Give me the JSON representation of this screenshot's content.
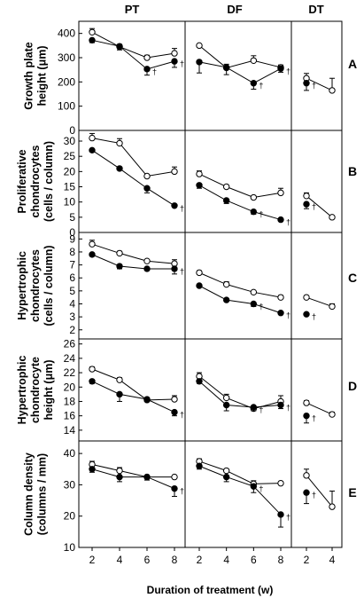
{
  "figure": {
    "columns": [
      "PT",
      "DF",
      "DT"
    ],
    "xlabel": "Duration of treatment (w)",
    "dagger": "†"
  },
  "chart_data": [
    {
      "type": "line",
      "panel": "A",
      "ylabel": [
        "Growth plate",
        "height (μm)"
      ],
      "ylim": [
        0,
        450
      ],
      "yticks": [
        0,
        100,
        200,
        300,
        400
      ],
      "groups": {
        "PT": {
          "x": [
            2,
            4,
            6,
            8
          ],
          "series": [
            {
              "marker": "open",
              "values": [
                405,
                345,
                300,
                318
              ],
              "err": [
                15,
                10,
                10,
                20
              ]
            },
            {
              "marker": "filled",
              "values": [
                372,
                347,
                253,
                285
              ],
              "err": [
                10,
                15,
                25,
                25
              ],
              "dagger": [
                false,
                false,
                true,
                true
              ]
            }
          ]
        },
        "DF": {
          "x": [
            2,
            4,
            6,
            8
          ],
          "series": [
            {
              "marker": "open",
              "values": [
                350,
                258,
                288,
                260
              ],
              "err": [
                5,
                15,
                20,
                10
              ]
            },
            {
              "marker": "filled",
              "values": [
                282,
                260,
                195,
                255
              ],
              "err": [
                45,
                30,
                25,
                15
              ],
              "dagger": [
                false,
                false,
                true,
                true
              ]
            }
          ]
        },
        "DT": {
          "x": [
            2,
            4
          ],
          "series": [
            {
              "marker": "open",
              "values": [
                215,
                165
              ],
              "err": [
                20,
                50
              ]
            },
            {
              "marker": "filled",
              "values": [
                195
              ],
              "err": [
                30
              ],
              "dagger": [
                true
              ]
            }
          ]
        }
      }
    },
    {
      "type": "line",
      "panel": "B",
      "ylabel": [
        "Proliferative",
        "chondrocytes",
        "(cells / column)"
      ],
      "ylim": [
        0,
        33.5
      ],
      "yticks": [
        0,
        5,
        10,
        15,
        20,
        25,
        30
      ],
      "groups": {
        "PT": {
          "x": [
            2,
            4,
            6,
            8
          ],
          "series": [
            {
              "marker": "open",
              "values": [
                31,
                29.3,
                18.5,
                20
              ],
              "err": [
                1.5,
                1.5,
                0.5,
                1.5
              ]
            },
            {
              "marker": "filled",
              "values": [
                27,
                21,
                14.5,
                8.8
              ],
              "err": [
                0.5,
                0.5,
                1.5,
                0.5
              ],
              "dagger": [
                false,
                false,
                false,
                true
              ]
            }
          ]
        },
        "DF": {
          "x": [
            2,
            4,
            6,
            8
          ],
          "series": [
            {
              "marker": "open",
              "values": [
                19.2,
                15,
                11.5,
                13
              ],
              "err": [
                1,
                0.5,
                0.5,
                1.5
              ]
            },
            {
              "marker": "filled",
              "values": [
                15.5,
                10.5,
                6.8,
                4.2
              ],
              "err": [
                1,
                1,
                0.8,
                0.5
              ],
              "dagger": [
                false,
                false,
                true,
                true
              ]
            }
          ]
        },
        "DT": {
          "x": [
            2,
            4
          ],
          "series": [
            {
              "marker": "open",
              "values": [
                12,
                5
              ],
              "err": [
                1,
                0.5
              ]
            },
            {
              "marker": "filled",
              "values": [
                9.3
              ],
              "err": [
                1.5
              ],
              "dagger": [
                true
              ]
            }
          ]
        }
      }
    },
    {
      "type": "line",
      "panel": "C",
      "ylabel": [
        "Hypertrophic",
        "chondrocytes",
        "(cells / column)"
      ],
      "ylim": [
        1.3,
        9.5
      ],
      "yticks": [
        2,
        3,
        4,
        5,
        6,
        7,
        8,
        9
      ],
      "groups": {
        "PT": {
          "x": [
            2,
            4,
            6,
            8
          ],
          "series": [
            {
              "marker": "open",
              "values": [
                8.6,
                7.9,
                7.3,
                7.1
              ],
              "err": [
                0.3,
                0.15,
                0.1,
                0.3
              ]
            },
            {
              "marker": "filled",
              "values": [
                7.8,
                6.9,
                6.7,
                6.7
              ],
              "err": [
                0.1,
                0.2,
                0.1,
                0.4
              ],
              "dagger": [
                false,
                false,
                false,
                true
              ]
            }
          ]
        },
        "DF": {
          "x": [
            2,
            4,
            6,
            8
          ],
          "series": [
            {
              "marker": "open",
              "values": [
                6.4,
                5.5,
                4.9,
                4.5
              ],
              "err": [
                0.15,
                0.2,
                0.1,
                0.15
              ]
            },
            {
              "marker": "filled",
              "values": [
                5.4,
                4.3,
                4.0,
                3.3
              ],
              "err": [
                0.1,
                0.1,
                0.2,
                0.1
              ],
              "dagger": [
                false,
                false,
                true,
                true
              ]
            }
          ]
        },
        "DT": {
          "x": [
            2,
            4
          ],
          "series": [
            {
              "marker": "open",
              "values": [
                4.5,
                3.8
              ],
              "err": [
                0.1,
                0.2
              ]
            },
            {
              "marker": "filled",
              "values": [
                3.2
              ],
              "err": [
                0.1
              ],
              "dagger": [
                true
              ]
            }
          ]
        }
      }
    },
    {
      "type": "line",
      "panel": "D",
      "ylabel": [
        "Hypertrophic",
        "chondrocyte",
        "height (μm)"
      ],
      "ylim": [
        12.5,
        26.7
      ],
      "yticks": [
        14,
        16,
        18,
        20,
        22,
        24,
        26
      ],
      "groups": {
        "PT": {
          "x": [
            2,
            4,
            6,
            8
          ],
          "series": [
            {
              "marker": "open",
              "values": [
                22.5,
                21,
                18.2,
                18.3
              ],
              "err": [
                0.3,
                0.3,
                0.3,
                0.5
              ]
            },
            {
              "marker": "filled",
              "values": [
                20.8,
                19,
                18.3,
                16.5
              ],
              "err": [
                0.3,
                1,
                0.3,
                0.5
              ],
              "dagger": [
                false,
                false,
                false,
                true
              ]
            }
          ]
        },
        "DF": {
          "x": [
            2,
            4,
            6,
            8
          ],
          "series": [
            {
              "marker": "open",
              "values": [
                21.5,
                18.5,
                17,
                18
              ],
              "err": [
                0.5,
                0.5,
                0.3,
                0.8
              ]
            },
            {
              "marker": "filled",
              "values": [
                20.8,
                17.5,
                17.2,
                17.5
              ],
              "err": [
                0.3,
                0.8,
                0.5,
                0.5
              ],
              "dagger": [
                false,
                false,
                true,
                true
              ]
            }
          ]
        },
        "DT": {
          "x": [
            2,
            4
          ],
          "series": [
            {
              "marker": "open",
              "values": [
                17.8,
                16.2
              ],
              "err": [
                0.3,
                0.3
              ]
            },
            {
              "marker": "filled",
              "values": [
                16
              ],
              "err": [
                1
              ],
              "dagger": [
                true
              ]
            }
          ]
        }
      }
    },
    {
      "type": "line",
      "panel": "E",
      "ylabel": [
        "Column density",
        "(columns / mm)"
      ],
      "ylim": [
        10,
        44
      ],
      "yticks": [
        10,
        20,
        30,
        40
      ],
      "groups": {
        "PT": {
          "x": [
            2,
            4,
            6,
            8
          ],
          "series": [
            {
              "marker": "open",
              "values": [
                36.5,
                34.5,
                32.5,
                32.5
              ],
              "err": [
                1,
                1,
                0.5,
                0.5
              ]
            },
            {
              "marker": "filled",
              "values": [
                35,
                32.5,
                32.5,
                28.8
              ],
              "err": [
                1,
                1.5,
                1,
                2.5
              ],
              "dagger": [
                false,
                false,
                false,
                true
              ]
            }
          ]
        },
        "DF": {
          "x": [
            2,
            4,
            6,
            8
          ],
          "series": [
            {
              "marker": "open",
              "values": [
                37.5,
                34.5,
                30.3,
                30.5
              ],
              "err": [
                0.8,
                0.5,
                1,
                0.5
              ]
            },
            {
              "marker": "filled",
              "values": [
                36,
                32.5,
                29.5,
                20.5
              ],
              "err": [
                1,
                1.5,
                2,
                4
              ],
              "dagger": [
                false,
                false,
                true,
                true
              ]
            }
          ]
        },
        "DT": {
          "x": [
            2,
            4
          ],
          "series": [
            {
              "marker": "open",
              "values": [
                33,
                23
              ],
              "err": [
                2,
                5
              ]
            },
            {
              "marker": "filled",
              "values": [
                27.5
              ],
              "err": [
                3.5
              ],
              "dagger": [
                true
              ]
            }
          ]
        }
      }
    }
  ]
}
